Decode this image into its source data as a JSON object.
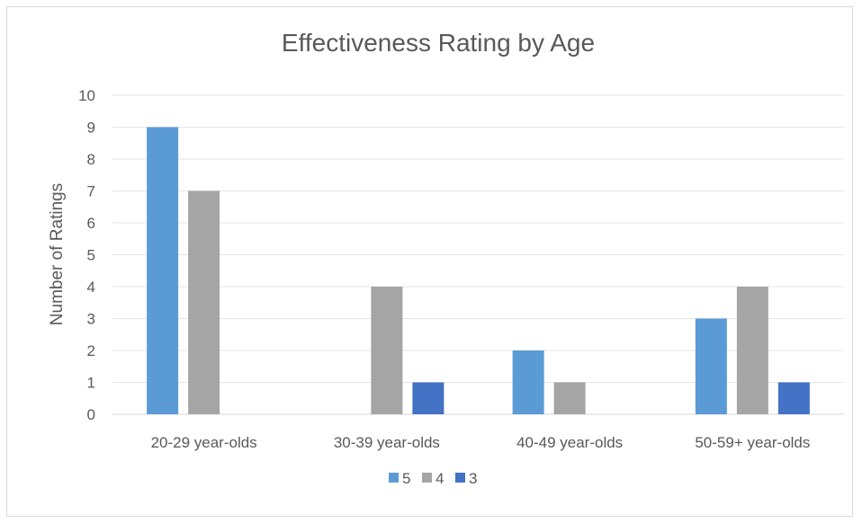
{
  "chart_data": {
    "type": "bar",
    "title": "Effectiveness Rating by Age",
    "xlabel": "",
    "ylabel": "Number of Ratings",
    "categories": [
      "20-29 year-olds",
      "30-39 year-olds",
      "40-49 year-olds",
      "50-59+ year-olds"
    ],
    "series": [
      {
        "name": "5",
        "values": [
          9,
          0,
          2,
          3
        ],
        "color": "#5b9bd5"
      },
      {
        "name": "4",
        "values": [
          7,
          4,
          1,
          4
        ],
        "color": "#a5a5a5"
      },
      {
        "name": "3",
        "values": [
          0,
          1,
          0,
          1
        ],
        "color": "#4472c4"
      }
    ],
    "ylim": [
      0,
      10
    ],
    "yticks": [
      0,
      1,
      2,
      3,
      4,
      5,
      6,
      7,
      8,
      9,
      10
    ],
    "grid": true,
    "legend_position": "bottom"
  }
}
